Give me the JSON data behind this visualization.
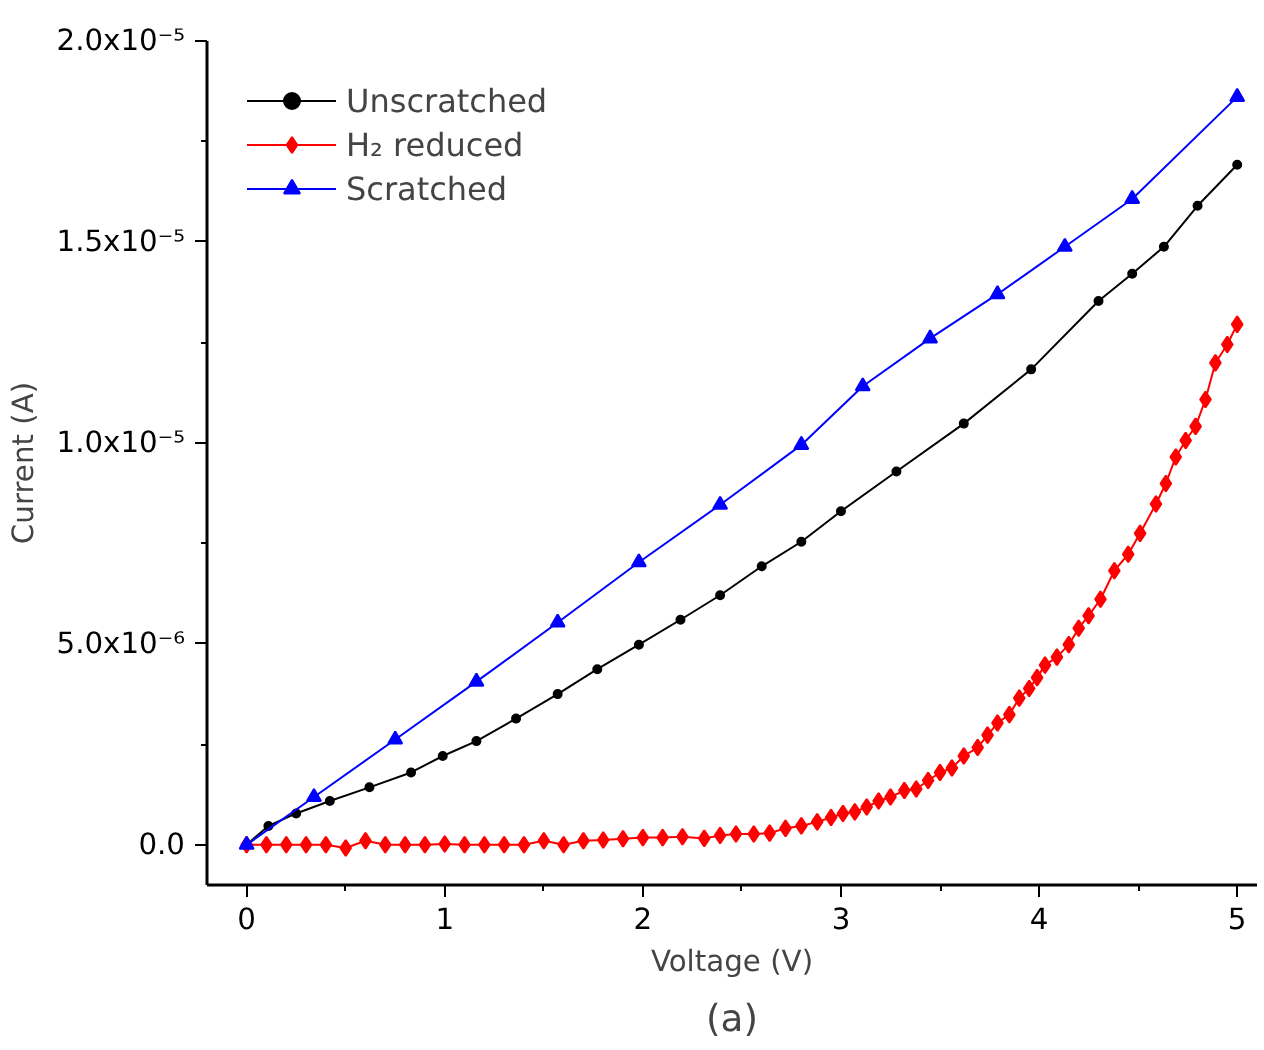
{
  "chart_data": {
    "type": "line",
    "xlabel": "Voltage (V)",
    "ylabel": "Current (A)",
    "annotations": [
      "(a)"
    ],
    "xlim": [
      -0.2,
      5.1
    ],
    "xticks": [
      0,
      1,
      2,
      3,
      4,
      5
    ],
    "ylim": [
      -1e-06,
      2e-05
    ],
    "yticks": [
      {
        "value": 0,
        "label": "0.0"
      },
      {
        "value": 5e-06,
        "label": "5.0x10⁻⁶"
      },
      {
        "value": 1e-05,
        "label": "1.0x10⁻⁵"
      },
      {
        "value": 1.5e-05,
        "label": "1.5x10⁻⁵"
      },
      {
        "value": 2e-05,
        "label": "2.0x10⁻⁵"
      }
    ],
    "grid": false,
    "legend": "top left",
    "line_style": "solid",
    "series": [
      {
        "name": "Unscratched",
        "color": "#000000",
        "marker": "circle",
        "x": [
          0,
          0.11,
          0.25,
          0.42,
          0.62,
          0.83,
          0.99,
          1.16,
          1.36,
          1.57,
          1.77,
          1.98,
          2.19,
          2.39,
          2.6,
          2.8,
          3.0,
          3.28,
          3.62,
          3.96,
          4.3,
          4.47,
          4.63,
          4.8,
          5.0
        ],
        "values": [
          0,
          4.7e-07,
          7.8e-07,
          1.09e-06,
          1.43e-06,
          1.8e-06,
          2.21e-06,
          2.58e-06,
          3.14e-06,
          3.75e-06,
          4.37e-06,
          4.98e-06,
          5.6e-06,
          6.21e-06,
          6.93e-06,
          7.54e-06,
          8.3e-06,
          9.29e-06,
          1.048e-05,
          1.183e-05,
          1.353e-05,
          1.421e-05,
          1.488e-05,
          1.59e-05,
          1.692e-05
        ]
      },
      {
        "name": "H₂ reduced",
        "color": "#ff0000",
        "marker": "diamond",
        "x": [
          0,
          0.1,
          0.2,
          0.3,
          0.4,
          0.5,
          0.6,
          0.7,
          0.8,
          0.9,
          1.0,
          1.1,
          1.2,
          1.3,
          1.4,
          1.5,
          1.6,
          1.7,
          1.8,
          1.9,
          2.0,
          2.1,
          2.2,
          2.31,
          2.39,
          2.47,
          2.56,
          2.64,
          2.72,
          2.8,
          2.88,
          2.95,
          3.01,
          3.07,
          3.13,
          3.19,
          3.25,
          3.32,
          3.38,
          3.44,
          3.5,
          3.56,
          3.62,
          3.69,
          3.74,
          3.79,
          3.85,
          3.9,
          3.95,
          3.99,
          4.03,
          4.09,
          4.15,
          4.2,
          4.25,
          4.31,
          4.38,
          4.45,
          4.51,
          4.59,
          4.64,
          4.69,
          4.74,
          4.79,
          4.84,
          4.89,
          4.95,
          5.0
        ],
        "values": [
          0,
          0,
          0,
          0,
          0,
          -8e-08,
          1e-07,
          0,
          0,
          0,
          2e-08,
          0,
          0,
          0,
          0,
          1e-07,
          0,
          1e-07,
          1.2e-07,
          1.5e-07,
          1.8e-07,
          1.8e-07,
          2e-07,
          1.6e-07,
          2.3e-07,
          2.7e-07,
          2.7e-07,
          2.9e-07,
          4.1e-07,
          4.7e-07,
          5.7e-07,
          6.8e-07,
          7.8e-07,
          8.2e-07,
          9.4e-07,
          1.09e-06,
          1.19e-06,
          1.35e-06,
          1.39e-06,
          1.6e-06,
          1.8e-06,
          1.91e-06,
          2.21e-06,
          2.42e-06,
          2.73e-06,
          3.03e-06,
          3.24e-06,
          3.65e-06,
          3.89e-06,
          4.16e-06,
          4.47e-06,
          4.67e-06,
          4.98e-06,
          5.39e-06,
          5.7e-06,
          6.11e-06,
          6.82e-06,
          7.23e-06,
          7.75e-06,
          8.48e-06,
          8.99e-06,
          9.65e-06,
          1.006e-05,
          1.041e-05,
          1.108e-05,
          1.199e-05,
          1.245e-05,
          1.295e-05
        ]
      },
      {
        "name": "Scratched",
        "color": "#0000ff",
        "marker": "triangle",
        "x": [
          0,
          0.34,
          0.75,
          1.16,
          1.57,
          1.98,
          2.39,
          2.8,
          3.11,
          3.45,
          3.79,
          4.13,
          4.47,
          5.0
        ],
        "values": [
          0,
          1.19e-06,
          2.62e-06,
          4.06e-06,
          5.53e-06,
          7.03e-06,
          8.46e-06,
          9.95e-06,
          1.141e-05,
          1.26e-05,
          1.37e-05,
          1.488e-05,
          1.607e-05,
          1.861e-05
        ]
      }
    ]
  }
}
